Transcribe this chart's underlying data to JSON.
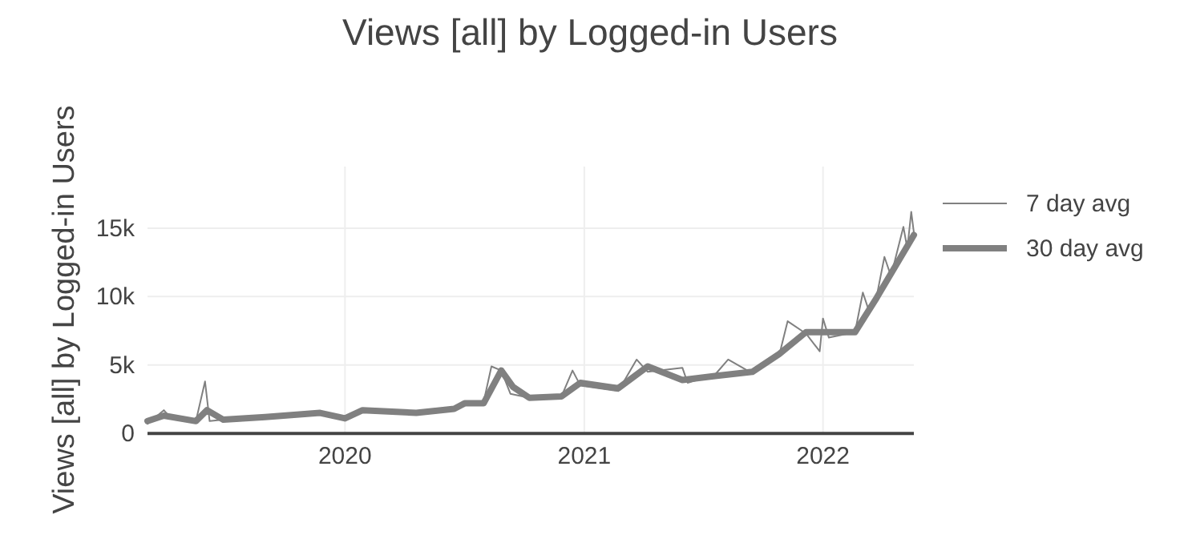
{
  "chart_data": {
    "type": "line",
    "title": "Views [all] by Logged-in Users",
    "ylabel": "Views [all] by Logged-in Users",
    "xlim": [
      "2019-03-05",
      "2022-05-20"
    ],
    "xticks": [
      {
        "value": "2020-01-01",
        "label": "2020"
      },
      {
        "value": "2021-01-01",
        "label": "2021"
      },
      {
        "value": "2022-01-01",
        "label": "2022"
      }
    ],
    "ylim": [
      0,
      19500
    ],
    "yticks": [
      {
        "value": 0,
        "label": "0"
      },
      {
        "value": 5000,
        "label": "5k"
      },
      {
        "value": 10000,
        "label": "10k"
      },
      {
        "value": 15000,
        "label": "15k"
      }
    ],
    "grid": true,
    "legend": "top right",
    "series": [
      {
        "name": "7 day avg",
        "color": "#808080",
        "x": [
          "2019-03-05",
          "2019-03-30",
          "2019-04-10",
          "2019-05-18",
          "2019-06-01",
          "2019-06-08",
          "2019-06-29",
          "2019-09-01",
          "2019-11-24",
          "2020-01-01",
          "2020-01-28",
          "2020-04-19",
          "2020-06-16",
          "2020-07-02",
          "2020-07-31",
          "2020-08-12",
          "2020-08-27",
          "2020-09-10",
          "2020-10-09",
          "2020-11-27",
          "2020-12-14",
          "2020-12-26",
          "2021-02-22",
          "2021-03-22",
          "2021-04-08",
          "2021-05-31",
          "2021-06-08",
          "2021-07-20",
          "2021-08-09",
          "2021-09-15",
          "2021-10-26",
          "2021-11-08",
          "2021-12-06",
          "2021-12-27",
          "2022-01-01",
          "2022-01-10",
          "2022-02-19",
          "2022-03-03",
          "2022-03-12",
          "2022-03-24",
          "2022-04-05",
          "2022-04-15",
          "2022-05-04",
          "2022-05-10",
          "2022-05-16",
          "2022-05-20"
        ],
        "values": [
          700,
          1700,
          1100,
          900,
          3800,
          900,
          1000,
          1200,
          1500,
          1100,
          1700,
          1400,
          1800,
          2300,
          2300,
          4900,
          4600,
          2900,
          2600,
          2700,
          4600,
          3500,
          3100,
          5400,
          4500,
          4800,
          3700,
          4300,
          5400,
          4400,
          5700,
          8200,
          7300,
          6000,
          8400,
          7000,
          7400,
          10300,
          9000,
          10000,
          12900,
          11500,
          15100,
          13500,
          16200,
          14700
        ]
      },
      {
        "name": "30 day avg",
        "color": "#808080",
        "x": [
          "2019-03-05",
          "2019-03-30",
          "2019-05-18",
          "2019-06-04",
          "2019-06-29",
          "2019-09-01",
          "2019-11-24",
          "2020-01-01",
          "2020-01-28",
          "2020-04-19",
          "2020-06-16",
          "2020-07-02",
          "2020-07-31",
          "2020-08-27",
          "2020-09-14",
          "2020-10-09",
          "2020-11-27",
          "2020-12-26",
          "2021-02-22",
          "2021-04-08",
          "2021-05-31",
          "2021-07-20",
          "2021-09-15",
          "2021-10-26",
          "2021-12-06",
          "2022-02-19",
          "2022-03-24",
          "2022-05-20"
        ],
        "values": [
          900,
          1300,
          900,
          1700,
          1000,
          1200,
          1500,
          1100,
          1700,
          1500,
          1800,
          2200,
          2200,
          4600,
          3400,
          2600,
          2700,
          3700,
          3300,
          4900,
          3900,
          4200,
          4500,
          5800,
          7400,
          7400,
          9900,
          14500
        ]
      }
    ]
  }
}
